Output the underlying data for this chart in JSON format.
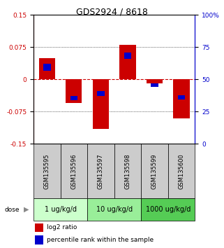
{
  "title": "GDS2924 / 8618",
  "samples": [
    "GSM135595",
    "GSM135596",
    "GSM135597",
    "GSM135598",
    "GSM135599",
    "GSM135600"
  ],
  "log2_ratios": [
    0.05,
    -0.055,
    -0.115,
    0.08,
    -0.01,
    -0.09
  ],
  "blue_bar_heights": [
    0.015,
    0.01,
    0.01,
    0.015,
    0.008,
    0.01
  ],
  "blue_bar_positions": [
    0.028,
    -0.043,
    -0.033,
    0.055,
    -0.013,
    -0.042
  ],
  "ylim": [
    -0.15,
    0.15
  ],
  "yticks_left": [
    -0.15,
    -0.075,
    0,
    0.075,
    0.15
  ],
  "yticks_right": [
    0,
    25,
    50,
    75,
    100
  ],
  "yticks_right_vals": [
    -0.15,
    -0.075,
    0,
    0.075,
    0.15
  ],
  "dose_map": [
    {
      "start": 0,
      "end": 1,
      "label": "1 ug/kg/d",
      "color": "#ccffcc"
    },
    {
      "start": 2,
      "end": 3,
      "label": "10 ug/kg/d",
      "color": "#99ee99"
    },
    {
      "start": 4,
      "end": 5,
      "label": "1000 ug/kg/d",
      "color": "#55cc55"
    }
  ],
  "bar_color_red": "#cc0000",
  "bar_color_blue": "#0000cc",
  "bar_width": 0.6,
  "hline_color": "#cc0000",
  "left_axis_color": "#cc0000",
  "right_axis_color": "#0000cc",
  "sample_bg": "#cccccc",
  "title_fontsize": 9,
  "tick_fontsize": 6.5,
  "sample_label_fontsize": 6,
  "dose_fontsize": 7,
  "legend_fontsize": 6.5,
  "label_log2": "log2 ratio",
  "label_pct": "percentile rank within the sample"
}
